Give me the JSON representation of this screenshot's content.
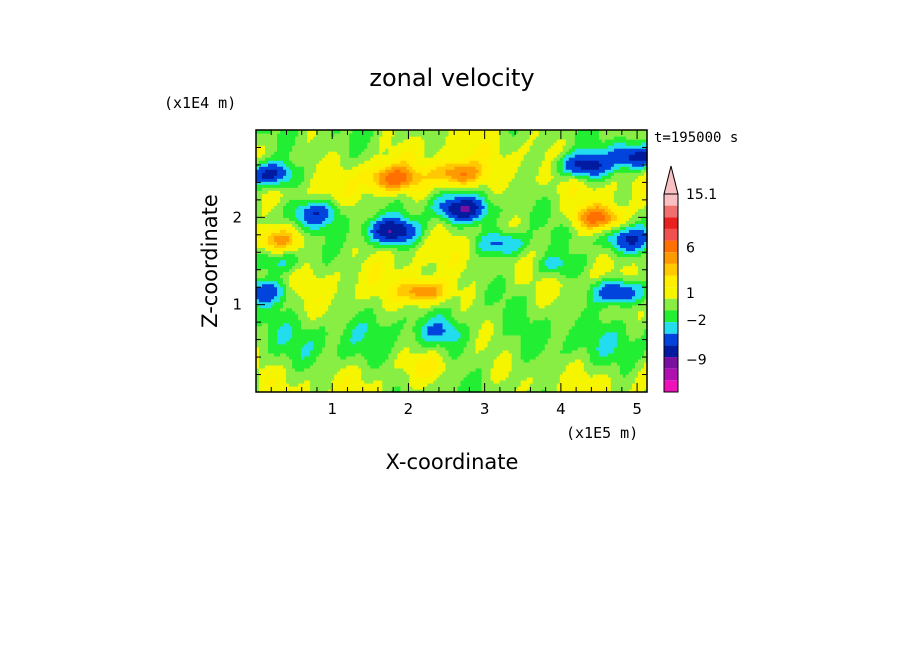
{
  "chart_data": {
    "type": "heatmap",
    "title": "zonal velocity",
    "xlabel": "X-coordinate",
    "ylabel": "Z-coordinate",
    "x_unit": "(x1E5 m)",
    "y_unit": "(x1E4 m)",
    "time_label": "t=195000 s",
    "xlim": [
      0,
      5.13
    ],
    "ylim": [
      0,
      3.0
    ],
    "x_ticks": [
      1,
      2,
      3,
      4,
      5
    ],
    "y_ticks": [
      1,
      2
    ],
    "grid": false,
    "legend": "right",
    "colorbar": {
      "extend": "max",
      "labels": [
        "15.1",
        "6",
        "1",
        "-2",
        "-9"
      ],
      "bins": [
        {
          "value": 13.0,
          "color": "#f8c0c0"
        },
        {
          "value": 11.0,
          "color": "#f07070"
        },
        {
          "value": 9.0,
          "color": "#e82020"
        },
        {
          "value": 7.5,
          "color": "#f25050"
        },
        {
          "value": 5.0,
          "color": "#ff7000"
        },
        {
          "value": 3.5,
          "color": "#ff9900"
        },
        {
          "value": 2.5,
          "color": "#ffc800"
        },
        {
          "value": 1.5,
          "color": "#ffee00"
        },
        {
          "value": 0.5,
          "color": "#f5f500"
        },
        {
          "value": -0.5,
          "color": "#88ee44"
        },
        {
          "value": -1.5,
          "color": "#22ee33"
        },
        {
          "value": -2.5,
          "color": "#22ddee"
        },
        {
          "value": -4.0,
          "color": "#0044dd"
        },
        {
          "value": -6.0,
          "color": "#001aa0"
        },
        {
          "value": -8.0,
          "color": "#7a10a0"
        },
        {
          "value": -10.0,
          "color": "#b010b0"
        },
        {
          "value": -12.0,
          "color": "#ee10b8"
        }
      ]
    },
    "field_features": [
      {
        "x": 1.8,
        "z": 2.45,
        "value": 5.0
      },
      {
        "x": 2.65,
        "z": 2.5,
        "value": 5.0
      },
      {
        "x": 4.5,
        "z": 2.0,
        "value": 5.0
      },
      {
        "x": 0.3,
        "z": 1.75,
        "value": 3.5
      },
      {
        "x": 2.2,
        "z": 1.15,
        "value": 5.0
      },
      {
        "x": 2.3,
        "z": 0.3,
        "value": 1.5
      },
      {
        "x": 0.15,
        "z": 2.5,
        "value": -6.0
      },
      {
        "x": 0.8,
        "z": 2.05,
        "value": -4.0
      },
      {
        "x": 1.8,
        "z": 1.85,
        "value": -6.0
      },
      {
        "x": 2.7,
        "z": 2.1,
        "value": -6.0
      },
      {
        "x": 3.25,
        "z": 1.7,
        "value": -4.0
      },
      {
        "x": 4.3,
        "z": 2.6,
        "value": -6.0
      },
      {
        "x": 5.0,
        "z": 2.7,
        "value": -6.0
      },
      {
        "x": 4.9,
        "z": 1.75,
        "value": -4.0
      },
      {
        "x": 4.75,
        "z": 1.15,
        "value": -6.0
      },
      {
        "x": 0.1,
        "z": 1.15,
        "value": -4.0
      },
      {
        "x": 0.3,
        "z": 1.5,
        "value": -2.5
      },
      {
        "x": 2.4,
        "z": 0.7,
        "value": -2.5
      },
      {
        "x": 3.9,
        "z": 1.45,
        "value": -2.5
      }
    ]
  }
}
